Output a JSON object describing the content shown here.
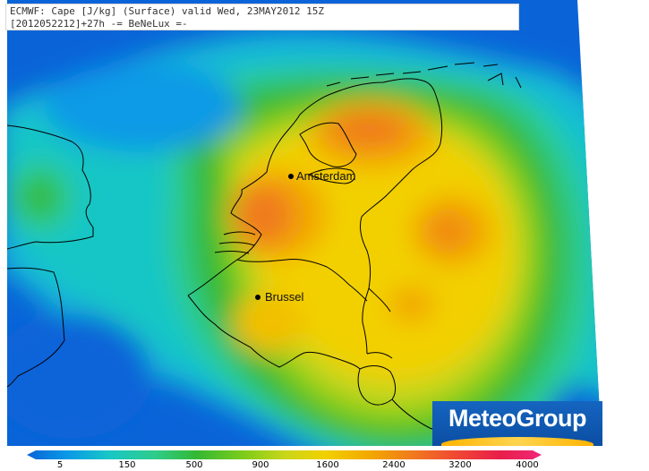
{
  "header": {
    "line1": "ECMWF: Cape [J/kg] (Surface) valid Wed, 23MAY2012 15Z",
    "line2": "[2012052212]+27h -= BeNeLux =-"
  },
  "cities": [
    {
      "id": "amsterdam",
      "label": "Amsterdam"
    },
    {
      "id": "brussel",
      "label": "Brussel"
    }
  ],
  "logo": {
    "text": "MeteoGroup"
  },
  "colorbar": {
    "ticks": [
      "5",
      "150",
      "500",
      "900",
      "1600",
      "2400",
      "3200",
      "4000"
    ],
    "colors": [
      "#0a64d8",
      "#0a9ae6",
      "#19c6c6",
      "#2ecc8a",
      "#33b833",
      "#7ccc1a",
      "#c8d61a",
      "#f2d000",
      "#f2a600",
      "#f07a1e",
      "#f04a32",
      "#e81e4a",
      "#f02878"
    ]
  },
  "legend_colors": {
    "deep_blue": "#0a64d8",
    "cyan": "#19c6c6",
    "green": "#33b833",
    "yellow": "#f2d000",
    "orange": "#f2a600",
    "red_orange": "#f07a1e"
  }
}
